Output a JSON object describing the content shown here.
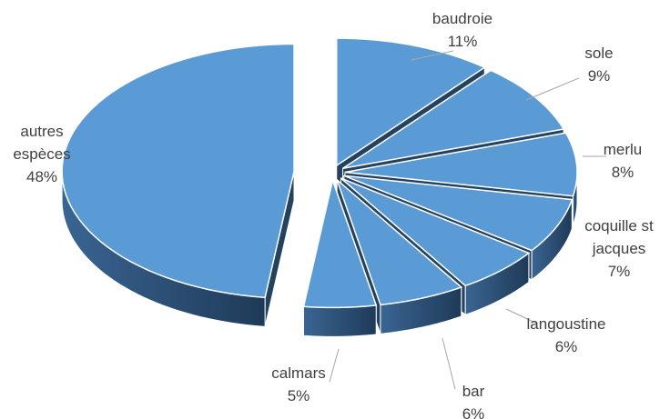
{
  "chart_data": {
    "type": "pie",
    "categories": [
      "baudroie",
      "sole",
      "merlu",
      "coquille st jacques",
      "langoustine",
      "bar",
      "calmars",
      "autres espèces"
    ],
    "values": [
      11,
      9,
      8,
      7,
      6,
      6,
      5,
      48
    ],
    "value_labels": [
      "11%",
      "9%",
      "8%",
      "7%",
      "6%",
      "6%",
      "5%",
      "48%"
    ],
    "color": "#5b9bd5"
  }
}
